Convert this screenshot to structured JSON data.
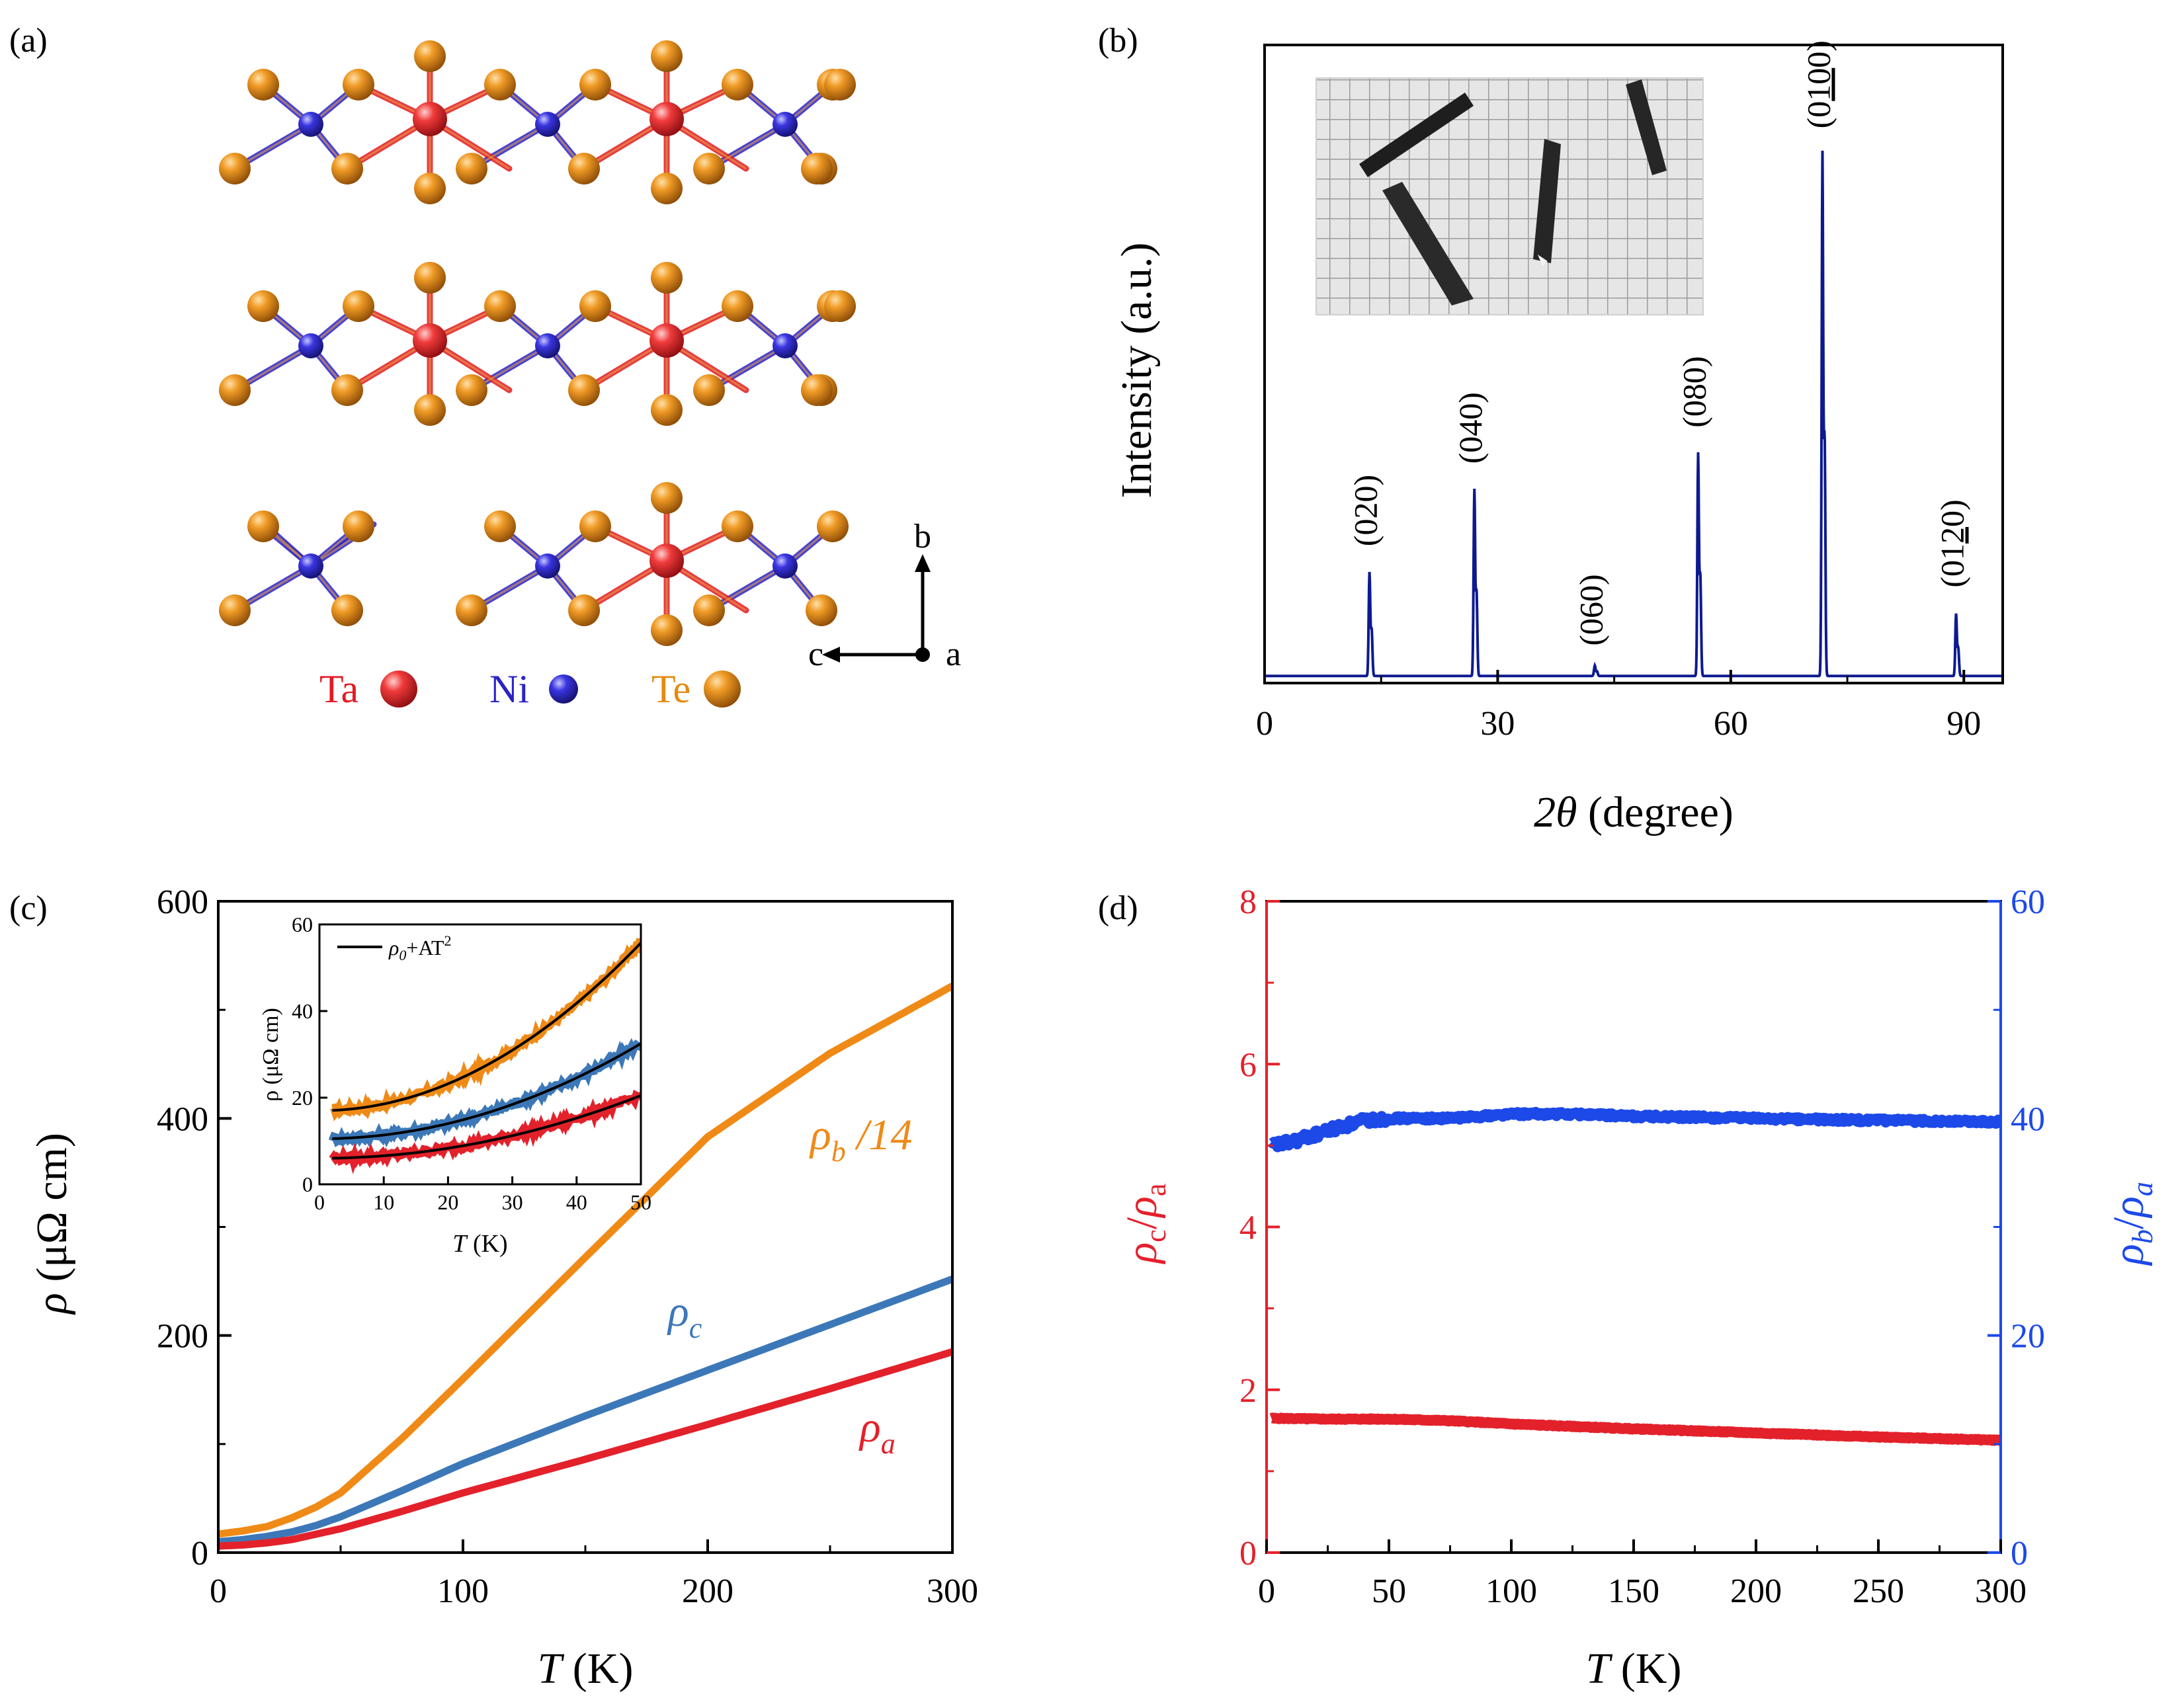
{
  "panel_labels": {
    "a": "(a)",
    "b": "(b)",
    "c": "(c)",
    "d": "(d)"
  },
  "panel_a": {
    "legend": [
      {
        "symbol": "Ta",
        "color": "#e21b23"
      },
      {
        "symbol": "Ni",
        "color": "#2a23c8"
      },
      {
        "symbol": "Te",
        "color": "#e58a10"
      }
    ],
    "axes": {
      "b": "b",
      "c": "c",
      "a": "a"
    }
  },
  "chart_data": [
    {
      "panel": "b",
      "type": "line",
      "xlabel_main": "2θ",
      "xlabel_unit": "(degree)",
      "ylabel": "Intensity (a.u.)",
      "xlim": [
        0,
        95
      ],
      "xticks": [
        0,
        30,
        60,
        90
      ],
      "ylim": [
        0,
        100
      ],
      "yticks_shown": false,
      "baseline": 1,
      "peaks": [
        {
          "label_pre": "(020)",
          "label_ul": "",
          "label_post": "",
          "x": 13.5,
          "height": 20
        },
        {
          "label_pre": "(040)",
          "label_ul": "",
          "label_post": "",
          "x": 27.0,
          "height": 36
        },
        {
          "label_pre": "(060)",
          "label_ul": "",
          "label_post": "",
          "x": 42.5,
          "height": 2
        },
        {
          "label_pre": "(080)",
          "label_ul": "",
          "label_post": "",
          "x": 55.8,
          "height": 43
        },
        {
          "label_pre": "(0",
          "label_ul": "10",
          "label_post": "0)",
          "x": 71.8,
          "height": 101
        },
        {
          "label_pre": "(01",
          "label_ul": "2",
          "label_post": "0)",
          "x": 89.0,
          "height": 12
        }
      ],
      "inset": "photograph of needle-like crystals on mm grid paper",
      "color": "#0d1a8f"
    },
    {
      "panel": "c",
      "type": "line",
      "xlabel_main": "T",
      "xlabel_unit": "(K)",
      "ylabel_main": "ρ",
      "ylabel_unit": "(μΩ cm)",
      "xlim": [
        0,
        300
      ],
      "xticks": [
        0,
        100,
        200,
        300
      ],
      "ylim": [
        0,
        600
      ],
      "yticks": [
        0,
        200,
        400,
        600
      ],
      "series": [
        {
          "name": "ρ_b /14",
          "label_main": "ρ",
          "label_sub": "b",
          "label_suffix": " /14",
          "color": "#ef8a17",
          "T": [
            0,
            10,
            20,
            30,
            40,
            50,
            75,
            100,
            150,
            200,
            250,
            300
          ],
          "values": [
            17,
            20,
            24,
            32,
            42,
            55,
            105,
            160,
            272,
            383,
            460,
            522
          ]
        },
        {
          "name": "ρ_c",
          "label_main": "ρ",
          "label_sub": "c",
          "label_suffix": "",
          "color": "#3c78b8",
          "T": [
            0,
            10,
            20,
            30,
            40,
            50,
            75,
            100,
            150,
            200,
            250,
            300
          ],
          "values": [
            10,
            12,
            15,
            19,
            25,
            33,
            57,
            82,
            126,
            168,
            210,
            252
          ]
        },
        {
          "name": "ρ_a",
          "label_main": "ρ",
          "label_sub": "a",
          "label_suffix": "",
          "color": "#e3212b",
          "T": [
            0,
            10,
            20,
            30,
            40,
            50,
            75,
            100,
            150,
            200,
            250,
            300
          ],
          "values": [
            6,
            7,
            9,
            12,
            17,
            22,
            38,
            55,
            86,
            118,
            151,
            185
          ]
        }
      ],
      "inset": {
        "xlabel_main": "T",
        "xlabel_unit": "(K)",
        "ylabel": "ρ (μΩ cm)",
        "xlim": [
          0,
          50
        ],
        "xticks": [
          0,
          10,
          20,
          30,
          40,
          50
        ],
        "ylim": [
          0,
          60
        ],
        "yticks": [
          0,
          20,
          40,
          60
        ],
        "fit_label_main": "ρ",
        "fit_label_sub": "0",
        "fit_label_rest": "+AT",
        "fit_label_sup": "2",
        "series": [
          {
            "color": "#ef8a17",
            "rho0": 17,
            "A": 0.0155
          },
          {
            "color": "#3c78b8",
            "rho0": 10.5,
            "A": 0.0088
          },
          {
            "color": "#e3212b",
            "rho0": 6.0,
            "A": 0.0058
          }
        ]
      }
    },
    {
      "panel": "d",
      "type": "line",
      "xlabel_main": "T",
      "xlabel_unit": "(K)",
      "xlim": [
        0,
        300
      ],
      "xticks": [
        0,
        50,
        100,
        150,
        200,
        250,
        300
      ],
      "left_axis": {
        "ylim": [
          0,
          8
        ],
        "yticks": [
          0,
          2,
          4,
          6,
          8
        ],
        "color": "#e3212b",
        "label_main": "ρ",
        "label_sub": "c",
        "label_mid": "/",
        "label_main2": "ρ",
        "label_sub2": "a"
      },
      "right_axis": {
        "ylim": [
          0,
          60
        ],
        "yticks": [
          0,
          20,
          40,
          60
        ],
        "color": "#1c49e8",
        "label_main": "ρ",
        "label_sub": "b",
        "label_mid": "/",
        "label_main2": "ρ",
        "label_sub2": "a"
      },
      "series": [
        {
          "name": "ρc/ρa",
          "axis": "left",
          "color": "#e3212b",
          "T": [
            2,
            25,
            50,
            75,
            100,
            150,
            200,
            250,
            300
          ],
          "values": [
            1.65,
            1.64,
            1.64,
            1.62,
            1.58,
            1.52,
            1.47,
            1.42,
            1.38
          ]
        },
        {
          "name": "ρb/ρa",
          "axis": "right",
          "color": "#1c49e8",
          "T": [
            2,
            10,
            20,
            30,
            40,
            50,
            75,
            100,
            125,
            150,
            200,
            250,
            300
          ],
          "values": [
            37.5,
            37.8,
            38.5,
            39.2,
            39.8,
            40.0,
            40.0,
            40.4,
            40.4,
            40.2,
            40.0,
            39.8,
            39.7
          ]
        }
      ]
    }
  ]
}
